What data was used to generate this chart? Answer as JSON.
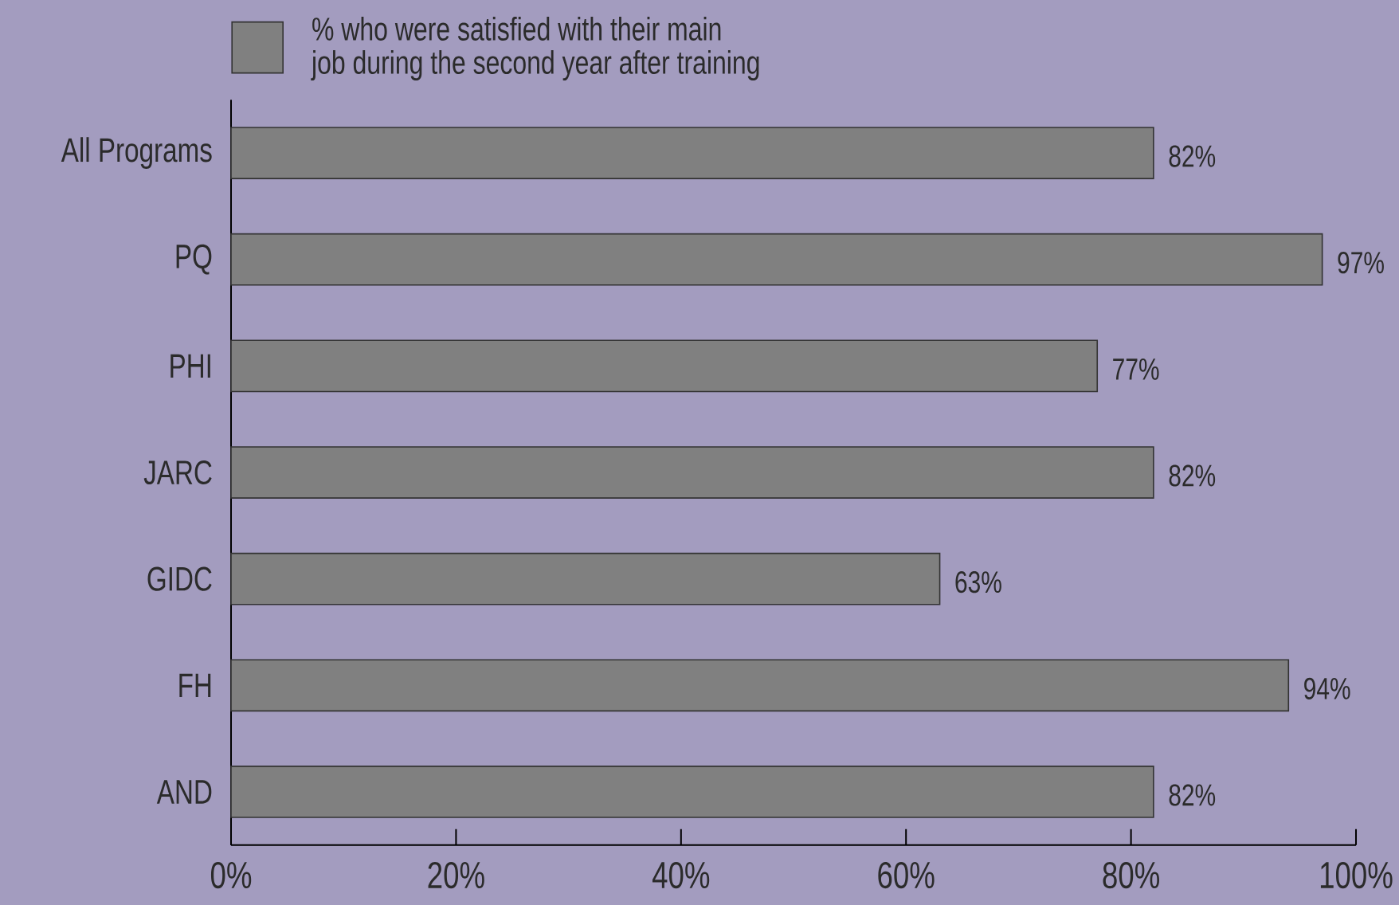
{
  "chart_data": {
    "type": "bar",
    "orientation": "horizontal",
    "categories": [
      "All Programs",
      "PQ",
      "PHI",
      "JARC",
      "GIDC",
      "FH",
      "AND"
    ],
    "series": [
      {
        "name": "% who were satisfied with their main job during the second year after training",
        "color": "#808080",
        "values": [
          82,
          97,
          77,
          82,
          63,
          94,
          82
        ],
        "value_labels": [
          "82%",
          "97%",
          "77%",
          "82%",
          "63%",
          "94%",
          "82%"
        ]
      }
    ],
    "xlim": [
      0,
      100
    ],
    "xticks": [
      {
        "value": 0,
        "label": "0%"
      },
      {
        "value": 20,
        "label": "20%"
      },
      {
        "value": 40,
        "label": "40%"
      },
      {
        "value": 60,
        "label": "60%"
      },
      {
        "value": 80,
        "label": "80%"
      },
      {
        "value": 100,
        "label": "100%"
      }
    ],
    "legend": "top left"
  }
}
